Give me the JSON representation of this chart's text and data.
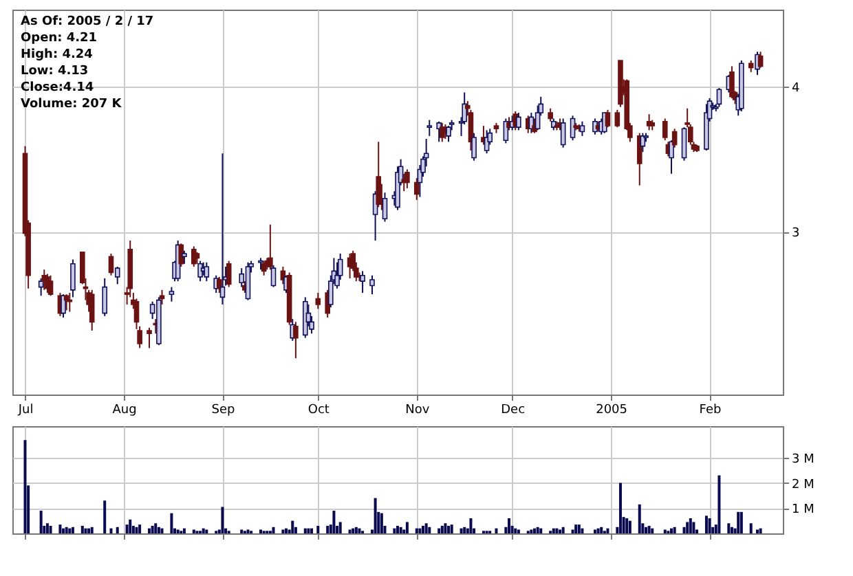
{
  "chart_data": [
    {
      "type": "candlestick",
      "annotations": [
        "As Of: 2005 / 2 / 17",
        "Open: 4.21",
        "High: 4.24",
        "Low: 4.13",
        "Close:4.14",
        "Volume: 207 K"
      ],
      "x": [
        "2004-07-01",
        "2004-07-02",
        "2004-07-06",
        "2004-07-07",
        "2004-07-08",
        "2004-07-09",
        "2004-07-12",
        "2004-07-13",
        "2004-07-14",
        "2004-07-15",
        "2004-07-16",
        "2004-07-19",
        "2004-07-20",
        "2004-07-21",
        "2004-07-22",
        "2004-07-26",
        "2004-07-28",
        "2004-07-30",
        "2004-08-02",
        "2004-08-03",
        "2004-08-04",
        "2004-08-05",
        "2004-08-06",
        "2004-08-09",
        "2004-08-10",
        "2004-08-11",
        "2004-08-12",
        "2004-08-13",
        "2004-08-16",
        "2004-08-17",
        "2004-08-18",
        "2004-08-19",
        "2004-08-20",
        "2004-08-23",
        "2004-08-24",
        "2004-08-25",
        "2004-08-26",
        "2004-08-27",
        "2004-08-30",
        "2004-08-31",
        "2004-09-01",
        "2004-09-02",
        "2004-09-03",
        "2004-09-07",
        "2004-09-08",
        "2004-09-09",
        "2004-09-10",
        "2004-09-13",
        "2004-09-14",
        "2004-09-15",
        "2004-09-16",
        "2004-09-17",
        "2004-09-20",
        "2004-09-21",
        "2004-09-22",
        "2004-09-23",
        "2004-09-24",
        "2004-09-27",
        "2004-09-28",
        "2004-09-29",
        "2004-10-01",
        "2004-10-04",
        "2004-10-05",
        "2004-10-06",
        "2004-10-07",
        "2004-10-08",
        "2004-10-11",
        "2004-10-12",
        "2004-10-13",
        "2004-10-14",
        "2004-10-15",
        "2004-10-18",
        "2004-10-19",
        "2004-10-20",
        "2004-10-21",
        "2004-10-22",
        "2004-10-25",
        "2004-10-26",
        "2004-10-27",
        "2004-10-28",
        "2004-10-29",
        "2004-11-01",
        "2004-11-02",
        "2004-11-03",
        "2004-11-04",
        "2004-11-05",
        "2004-11-08",
        "2004-11-09",
        "2004-11-10",
        "2004-11-11",
        "2004-11-12",
        "2004-11-15",
        "2004-11-16",
        "2004-11-17",
        "2004-11-18",
        "2004-11-19",
        "2004-11-22",
        "2004-11-23",
        "2004-11-24",
        "2004-11-26",
        "2004-11-29",
        "2004-11-30",
        "2004-12-01",
        "2004-12-02",
        "2004-12-03",
        "2004-12-06",
        "2004-12-07",
        "2004-12-08",
        "2004-12-09",
        "2004-12-10",
        "2004-12-13",
        "2004-12-14",
        "2004-12-15",
        "2004-12-16",
        "2004-12-17",
        "2004-12-20",
        "2004-12-21",
        "2004-12-22",
        "2004-12-23",
        "2004-12-27",
        "2004-12-28",
        "2004-12-29",
        "2004-12-30",
        "2004-12-31",
        "2005-01-03",
        "2005-01-04",
        "2005-01-05",
        "2005-01-06",
        "2005-01-07",
        "2005-01-10",
        "2005-01-11",
        "2005-01-12",
        "2005-01-13",
        "2005-01-14",
        "2005-01-18",
        "2005-01-19",
        "2005-01-20",
        "2005-01-21",
        "2005-01-24",
        "2005-01-25",
        "2005-01-26",
        "2005-01-27",
        "2005-01-28",
        "2005-01-31",
        "2005-02-01",
        "2005-02-02",
        "2005-02-03",
        "2005-02-04",
        "2005-02-07",
        "2005-02-08",
        "2005-02-09",
        "2005-02-10",
        "2005-02-11",
        "2005-02-14",
        "2005-02-16",
        "2005-02-17"
      ],
      "ohlc": [
        [
          3.54,
          3.59,
          2.97,
          2.99
        ],
        [
          3.06,
          3.08,
          2.61,
          2.7
        ],
        [
          2.62,
          2.68,
          2.56,
          2.66
        ],
        [
          2.7,
          2.74,
          2.6,
          2.66
        ],
        [
          2.69,
          2.71,
          2.58,
          2.61
        ],
        [
          2.66,
          2.7,
          2.56,
          2.57
        ],
        [
          2.56,
          2.58,
          2.42,
          2.44
        ],
        [
          2.44,
          2.57,
          2.41,
          2.56
        ],
        [
          2.56,
          2.57,
          2.46,
          2.53
        ],
        [
          2.53,
          2.58,
          2.45,
          2.52
        ],
        [
          2.6,
          2.81,
          2.55,
          2.78
        ],
        [
          2.86,
          2.86,
          2.64,
          2.65
        ],
        [
          2.62,
          2.68,
          2.53,
          2.61
        ],
        [
          2.58,
          2.6,
          2.45,
          2.5
        ],
        [
          2.57,
          2.6,
          2.32,
          2.38
        ],
        [
          2.44,
          2.68,
          2.42,
          2.62
        ],
        [
          2.83,
          2.85,
          2.7,
          2.72
        ],
        [
          2.69,
          2.76,
          2.64,
          2.75
        ],
        [
          2.58,
          2.62,
          2.5,
          2.57
        ],
        [
          2.88,
          2.94,
          2.55,
          2.61
        ],
        [
          2.53,
          2.58,
          2.47,
          2.5
        ],
        [
          2.52,
          2.54,
          2.33,
          2.38
        ],
        [
          2.32,
          2.35,
          2.2,
          2.23
        ],
        [
          2.32,
          2.34,
          2.2,
          2.3
        ],
        [
          2.44,
          2.52,
          2.4,
          2.5
        ],
        [
          2.37,
          2.4,
          2.3,
          2.36
        ],
        [
          2.23,
          2.55,
          2.22,
          2.53
        ],
        [
          2.56,
          2.6,
          2.5,
          2.54
        ],
        [
          2.57,
          2.62,
          2.52,
          2.59
        ],
        [
          2.68,
          2.8,
          2.66,
          2.79
        ],
        [
          2.68,
          2.94,
          2.66,
          2.91
        ],
        [
          2.91,
          2.92,
          2.76,
          2.78
        ],
        [
          2.83,
          2.87,
          2.78,
          2.85
        ],
        [
          2.88,
          2.9,
          2.76,
          2.78
        ],
        [
          2.85,
          2.86,
          2.78,
          2.82
        ],
        [
          2.69,
          2.8,
          2.66,
          2.78
        ],
        [
          2.73,
          2.79,
          2.7,
          2.75
        ],
        [
          2.69,
          2.79,
          2.66,
          2.76
        ],
        [
          2.61,
          2.7,
          2.58,
          2.68
        ],
        [
          2.67,
          2.69,
          2.58,
          2.61
        ],
        [
          2.55,
          3.54,
          2.5,
          2.62
        ],
        [
          2.67,
          2.76,
          2.63,
          2.69
        ],
        [
          2.78,
          2.8,
          2.62,
          2.64
        ],
        [
          2.65,
          2.75,
          2.62,
          2.71
        ],
        [
          2.63,
          2.66,
          2.58,
          2.6
        ],
        [
          2.54,
          2.79,
          2.53,
          2.76
        ],
        [
          2.76,
          2.8,
          2.72,
          2.78
        ],
        [
          2.79,
          2.82,
          2.74,
          2.8
        ],
        [
          2.78,
          2.8,
          2.7,
          2.73
        ],
        [
          2.8,
          2.82,
          2.74,
          2.76
        ],
        [
          2.82,
          3.05,
          2.74,
          2.76
        ],
        [
          2.63,
          2.77,
          2.62,
          2.75
        ],
        [
          2.73,
          2.76,
          2.64,
          2.67
        ],
        [
          2.6,
          2.7,
          2.58,
          2.69
        ],
        [
          2.7,
          2.72,
          2.36,
          2.38
        ],
        [
          2.27,
          2.4,
          2.25,
          2.36
        ],
        [
          2.35,
          2.38,
          2.13,
          2.27
        ],
        [
          2.29,
          2.55,
          2.27,
          2.52
        ],
        [
          2.38,
          2.5,
          2.35,
          2.44
        ],
        [
          2.33,
          2.42,
          2.3,
          2.38
        ],
        [
          2.54,
          2.58,
          2.47,
          2.5
        ],
        [
          2.58,
          2.6,
          2.41,
          2.44
        ],
        [
          2.5,
          2.7,
          2.48,
          2.66
        ],
        [
          2.67,
          2.82,
          2.64,
          2.73
        ],
        [
          2.63,
          2.79,
          2.61,
          2.7
        ],
        [
          2.7,
          2.85,
          2.67,
          2.81
        ],
        [
          2.82,
          2.85,
          2.68,
          2.76
        ],
        [
          2.85,
          2.87,
          2.73,
          2.75
        ],
        [
          2.75,
          2.79,
          2.66,
          2.69
        ],
        [
          2.7,
          2.72,
          2.66,
          2.69
        ],
        [
          2.66,
          2.73,
          2.58,
          2.7
        ],
        [
          2.63,
          2.7,
          2.57,
          2.67
        ],
        [
          3.12,
          3.28,
          2.94,
          3.26
        ],
        [
          3.38,
          3.62,
          3.17,
          3.19
        ],
        [
          3.23,
          3.33,
          3.15,
          3.19
        ],
        [
          3.09,
          3.27,
          3.07,
          3.23
        ],
        [
          3.23,
          3.28,
          3.18,
          3.25
        ],
        [
          3.17,
          3.45,
          3.15,
          3.41
        ],
        [
          3.34,
          3.5,
          3.32,
          3.45
        ],
        [
          3.36,
          3.4,
          3.28,
          3.34
        ],
        [
          3.41,
          3.43,
          3.3,
          3.34
        ],
        [
          3.34,
          3.37,
          3.22,
          3.26
        ],
        [
          3.34,
          3.46,
          3.24,
          3.43
        ],
        [
          3.41,
          3.52,
          3.38,
          3.5
        ],
        [
          3.51,
          3.64,
          3.45,
          3.54
        ],
        [
          3.72,
          3.77,
          3.66,
          3.73
        ],
        [
          3.71,
          3.76,
          3.62,
          3.75
        ],
        [
          3.72,
          3.75,
          3.62,
          3.65
        ],
        [
          3.72,
          3.74,
          3.64,
          3.68
        ],
        [
          3.66,
          3.73,
          3.62,
          3.72
        ],
        [
          3.74,
          3.77,
          3.7,
          3.75
        ],
        [
          3.75,
          3.79,
          3.66,
          3.76
        ],
        [
          3.76,
          3.96,
          3.74,
          3.88
        ],
        [
          3.87,
          3.9,
          3.8,
          3.85
        ],
        [
          3.82,
          3.84,
          3.56,
          3.62
        ],
        [
          3.51,
          3.68,
          3.49,
          3.65
        ],
        [
          3.65,
          3.73,
          3.6,
          3.62
        ],
        [
          3.56,
          3.7,
          3.54,
          3.65
        ],
        [
          3.62,
          3.71,
          3.6,
          3.68
        ],
        [
          3.73,
          3.75,
          3.68,
          3.71
        ],
        [
          3.63,
          3.78,
          3.61,
          3.76
        ],
        [
          3.75,
          3.79,
          3.7,
          3.72
        ],
        [
          3.72,
          3.8,
          3.7,
          3.76
        ],
        [
          3.81,
          3.83,
          3.7,
          3.73
        ],
        [
          3.72,
          3.82,
          3.7,
          3.79
        ],
        [
          3.78,
          3.8,
          3.68,
          3.71
        ],
        [
          3.71,
          3.82,
          3.68,
          3.79
        ],
        [
          3.73,
          3.78,
          3.68,
          3.69
        ],
        [
          3.71,
          3.87,
          3.7,
          3.82
        ],
        [
          3.82,
          3.93,
          3.8,
          3.88
        ],
        [
          3.82,
          3.85,
          3.76,
          3.78
        ],
        [
          3.72,
          3.78,
          3.7,
          3.76
        ],
        [
          3.73,
          3.76,
          3.7,
          3.72
        ],
        [
          3.75,
          3.78,
          3.7,
          3.72
        ],
        [
          3.6,
          3.78,
          3.58,
          3.75
        ],
        [
          3.65,
          3.8,
          3.63,
          3.78
        ],
        [
          3.73,
          3.75,
          3.7,
          3.72
        ],
        [
          3.72,
          3.74,
          3.69,
          3.71
        ],
        [
          3.69,
          3.76,
          3.66,
          3.73
        ],
        [
          3.69,
          3.78,
          3.67,
          3.76
        ],
        [
          3.73,
          3.76,
          3.69,
          3.71
        ],
        [
          3.69,
          3.78,
          3.67,
          3.76
        ],
        [
          3.69,
          3.82,
          3.68,
          3.82
        ],
        [
          3.82,
          3.84,
          3.72,
          3.73
        ],
        [
          3.82,
          3.84,
          3.72,
          3.73
        ],
        [
          4.18,
          4.18,
          3.86,
          3.88
        ],
        [
          4.0,
          4.05,
          3.94,
          3.96
        ],
        [
          4.04,
          4.05,
          3.7,
          3.71
        ],
        [
          3.73,
          3.75,
          3.62,
          3.65
        ],
        [
          3.66,
          3.68,
          3.32,
          3.47
        ],
        [
          3.59,
          3.68,
          3.55,
          3.66
        ],
        [
          3.65,
          3.68,
          3.62,
          3.66
        ],
        [
          3.76,
          3.81,
          3.7,
          3.73
        ],
        [
          3.75,
          3.77,
          3.7,
          3.73
        ],
        [
          3.76,
          3.78,
          3.63,
          3.65
        ],
        [
          3.6,
          3.62,
          3.52,
          3.54
        ],
        [
          3.51,
          3.63,
          3.4,
          3.62
        ],
        [
          3.69,
          3.71,
          3.58,
          3.6
        ],
        [
          3.51,
          3.72,
          3.49,
          3.71
        ],
        [
          3.75,
          3.85,
          3.72,
          3.74
        ],
        [
          3.72,
          3.74,
          3.6,
          3.62
        ],
        [
          3.6,
          3.62,
          3.55,
          3.57
        ],
        [
          3.59,
          3.6,
          3.55,
          3.56
        ],
        [
          3.57,
          3.88,
          3.56,
          3.82
        ],
        [
          3.78,
          3.92,
          3.76,
          3.9
        ],
        [
          3.86,
          3.89,
          3.84,
          3.87
        ],
        [
          3.85,
          3.88,
          3.83,
          3.86
        ],
        [
          3.88,
          3.99,
          3.86,
          3.98
        ],
        [
          3.98,
          4.08,
          3.96,
          4.07
        ],
        [
          4.1,
          4.14,
          3.92,
          3.93
        ],
        [
          3.96,
          3.97,
          3.88,
          3.91
        ],
        [
          3.84,
          3.95,
          3.8,
          3.93
        ],
        [
          3.85,
          4.18,
          3.83,
          4.16
        ],
        [
          4.16,
          4.18,
          4.1,
          4.13
        ],
        [
          4.12,
          4.24,
          4.08,
          4.22
        ],
        [
          4.21,
          4.24,
          4.13,
          4.14
        ]
      ],
      "xlim": [
        "2004-06-27",
        "2005-02-24"
      ],
      "xticks": [
        {
          "value": "2004-07-01",
          "label": "Jul"
        },
        {
          "value": "2004-08-01",
          "label": "Aug"
        },
        {
          "value": "2004-09-01",
          "label": "Sep"
        },
        {
          "value": "2004-10-01",
          "label": "Oct"
        },
        {
          "value": "2004-11-01",
          "label": "Nov"
        },
        {
          "value": "2004-12-01",
          "label": "Dec"
        },
        {
          "value": "2005-01-01",
          "label": "2005"
        },
        {
          "value": "2005-02-01",
          "label": "Feb"
        }
      ],
      "ylim": [
        1.88,
        4.53
      ],
      "yticks": [
        3,
        4
      ],
      "grid": true
    },
    {
      "type": "bar",
      "color": "#0a0a50",
      "x": [
        "2004-07-01",
        "2004-07-02",
        "2004-07-06",
        "2004-07-07",
        "2004-07-08",
        "2004-07-09",
        "2004-07-12",
        "2004-07-13",
        "2004-07-14",
        "2004-07-15",
        "2004-07-16",
        "2004-07-19",
        "2004-07-20",
        "2004-07-21",
        "2004-07-22",
        "2004-07-26",
        "2004-07-28",
        "2004-07-30",
        "2004-08-02",
        "2004-08-03",
        "2004-08-04",
        "2004-08-05",
        "2004-08-06",
        "2004-08-09",
        "2004-08-10",
        "2004-08-11",
        "2004-08-12",
        "2004-08-13",
        "2004-08-16",
        "2004-08-17",
        "2004-08-18",
        "2004-08-19",
        "2004-08-20",
        "2004-08-23",
        "2004-08-24",
        "2004-08-25",
        "2004-08-26",
        "2004-08-27",
        "2004-08-30",
        "2004-08-31",
        "2004-09-01",
        "2004-09-02",
        "2004-09-03",
        "2004-09-07",
        "2004-09-08",
        "2004-09-09",
        "2004-09-10",
        "2004-09-13",
        "2004-09-14",
        "2004-09-15",
        "2004-09-16",
        "2004-09-17",
        "2004-09-20",
        "2004-09-21",
        "2004-09-22",
        "2004-09-23",
        "2004-09-24",
        "2004-09-27",
        "2004-09-28",
        "2004-09-29",
        "2004-10-01",
        "2004-10-04",
        "2004-10-05",
        "2004-10-06",
        "2004-10-07",
        "2004-10-08",
        "2004-10-11",
        "2004-10-12",
        "2004-10-13",
        "2004-10-14",
        "2004-10-15",
        "2004-10-18",
        "2004-10-19",
        "2004-10-20",
        "2004-10-21",
        "2004-10-22",
        "2004-10-25",
        "2004-10-26",
        "2004-10-27",
        "2004-10-28",
        "2004-10-29",
        "2004-11-01",
        "2004-11-02",
        "2004-11-03",
        "2004-11-04",
        "2004-11-05",
        "2004-11-08",
        "2004-11-09",
        "2004-11-10",
        "2004-11-11",
        "2004-11-12",
        "2004-11-15",
        "2004-11-16",
        "2004-11-17",
        "2004-11-18",
        "2004-11-19",
        "2004-11-22",
        "2004-11-23",
        "2004-11-24",
        "2004-11-26",
        "2004-11-29",
        "2004-11-30",
        "2004-12-01",
        "2004-12-02",
        "2004-12-03",
        "2004-12-06",
        "2004-12-07",
        "2004-12-08",
        "2004-12-09",
        "2004-12-10",
        "2004-12-13",
        "2004-12-14",
        "2004-12-15",
        "2004-12-16",
        "2004-12-17",
        "2004-12-20",
        "2004-12-21",
        "2004-12-22",
        "2004-12-23",
        "2004-12-27",
        "2004-12-28",
        "2004-12-29",
        "2004-12-30",
        "2004-12-31",
        "2005-01-03",
        "2005-01-04",
        "2005-01-05",
        "2005-01-06",
        "2005-01-07",
        "2005-01-10",
        "2005-01-11",
        "2005-01-12",
        "2005-01-13",
        "2005-01-14",
        "2005-01-18",
        "2005-01-19",
        "2005-01-20",
        "2005-01-21",
        "2005-01-24",
        "2005-01-25",
        "2005-01-26",
        "2005-01-27",
        "2005-01-28",
        "2005-01-31",
        "2005-02-01",
        "2005-02-02",
        "2005-02-03",
        "2005-02-04",
        "2005-02-07",
        "2005-02-08",
        "2005-02-09",
        "2005-02-10",
        "2005-02-11",
        "2005-02-14",
        "2005-02-16",
        "2005-02-17"
      ],
      "values": [
        3.7,
        1.9,
        0.9,
        0.3,
        0.4,
        0.3,
        0.35,
        0.2,
        0.25,
        0.2,
        0.25,
        0.3,
        0.2,
        0.2,
        0.25,
        1.3,
        0.2,
        0.25,
        0.35,
        0.55,
        0.3,
        0.25,
        0.35,
        0.2,
        0.3,
        0.4,
        0.25,
        0.2,
        0.8,
        0.2,
        0.15,
        0.1,
        0.2,
        0.15,
        0.1,
        0.1,
        0.2,
        0.15,
        0.1,
        0.15,
        1.05,
        0.2,
        0.1,
        0.15,
        0.1,
        0.15,
        0.1,
        0.15,
        0.1,
        0.1,
        0.1,
        0.25,
        0.15,
        0.2,
        0.15,
        0.5,
        0.25,
        0.2,
        0.2,
        0.2,
        0.3,
        0.3,
        0.35,
        0.9,
        0.3,
        0.45,
        0.15,
        0.2,
        0.25,
        0.2,
        0.1,
        0.15,
        1.4,
        0.85,
        0.8,
        0.3,
        0.2,
        0.3,
        0.25,
        0.15,
        0.45,
        0.2,
        0.2,
        0.3,
        0.4,
        0.25,
        0.2,
        0.3,
        0.4,
        0.3,
        0.35,
        0.2,
        0.25,
        0.2,
        0.6,
        0.2,
        0.1,
        0.1,
        0.1,
        0.2,
        0.25,
        0.6,
        0.3,
        0.2,
        0.15,
        0.1,
        0.15,
        0.2,
        0.25,
        0.2,
        0.1,
        0.2,
        0.2,
        0.15,
        0.25,
        0.15,
        0.35,
        0.35,
        0.2,
        0.15,
        0.2,
        0.25,
        0.1,
        0.2,
        0.25,
        2.0,
        0.65,
        0.6,
        0.5,
        1.15,
        0.4,
        0.25,
        0.3,
        0.2,
        0.15,
        0.1,
        0.2,
        0.25,
        0.25,
        0.45,
        0.6,
        0.45,
        0.15,
        0.7,
        0.6,
        0.25,
        0.35,
        2.3,
        0.4,
        0.25,
        0.2,
        0.85,
        0.85,
        0.4,
        0.15,
        0.2
      ],
      "xlim": [
        "2004-06-27",
        "2005-02-24"
      ],
      "xticks": [
        {
          "value": "2004-07-01",
          "label": null
        },
        {
          "value": "2004-08-01",
          "label": null
        },
        {
          "value": "2004-09-01",
          "label": null
        },
        {
          "value": "2004-10-01",
          "label": null
        },
        {
          "value": "2004-11-01",
          "label": null
        },
        {
          "value": "2004-12-01",
          "label": null
        },
        {
          "value": "2005-01-01",
          "label": null
        },
        {
          "value": "2005-02-01",
          "label": null
        }
      ],
      "ylim": [
        0,
        4.25
      ],
      "yticks": [
        {
          "value": 1,
          "label": "1 M"
        },
        {
          "value": 2,
          "label": "2 M"
        },
        {
          "value": 3,
          "label": "3 M"
        }
      ],
      "grid": true,
      "tick_labels": "y"
    }
  ]
}
